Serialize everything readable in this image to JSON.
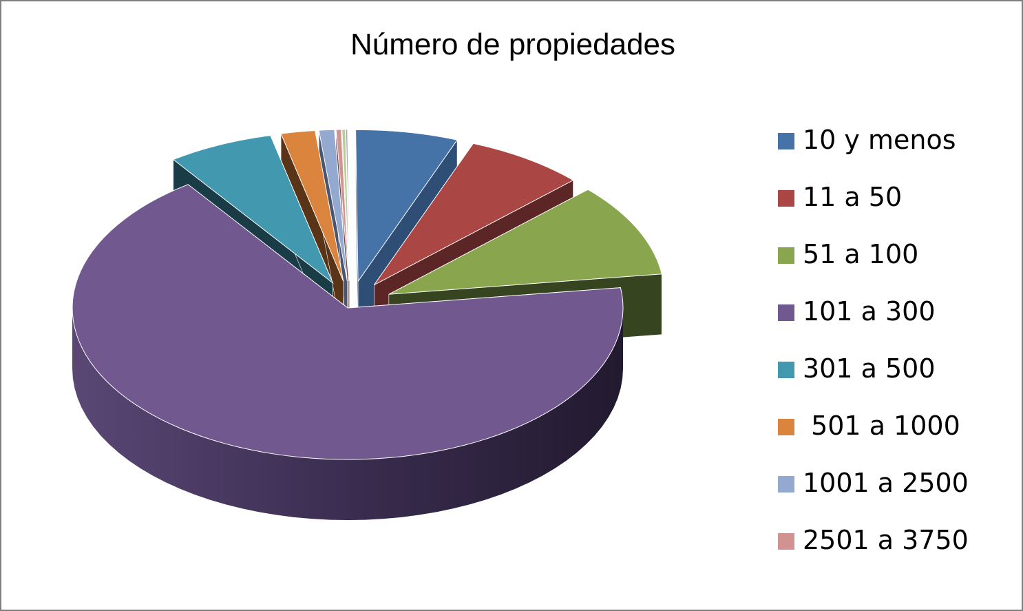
{
  "chart_data": {
    "type": "pie",
    "title": "Número de propiedades",
    "legend_position": "right",
    "exploded": true,
    "three_d": true,
    "categories": [
      "10 y menos",
      "11 a 50",
      "51 a 100",
      "101 a 300",
      "301 a 500",
      " 501 a 1000",
      "1001 a 2500",
      "2501 a 3750",
      "",
      ""
    ],
    "values": [
      6.0,
      7.0,
      10.0,
      67.3,
      6.2,
      2.0,
      0.9,
      0.3,
      0.2,
      0.1
    ],
    "colors": [
      "#4572A7",
      "#AA4643",
      "#89A54E",
      "#71588F",
      "#4198AF",
      "#DB843D",
      "#93A9CF",
      "#D19392",
      "#B9CD96",
      "#A99BBD"
    ],
    "side_colors": [
      "#2F4E76",
      "#5C2526",
      "#364420",
      "#2D2340",
      "#1A3C47",
      "#5A3416",
      "#4A5570",
      "#6B4848",
      "#5C6648",
      "#54505E"
    ]
  }
}
